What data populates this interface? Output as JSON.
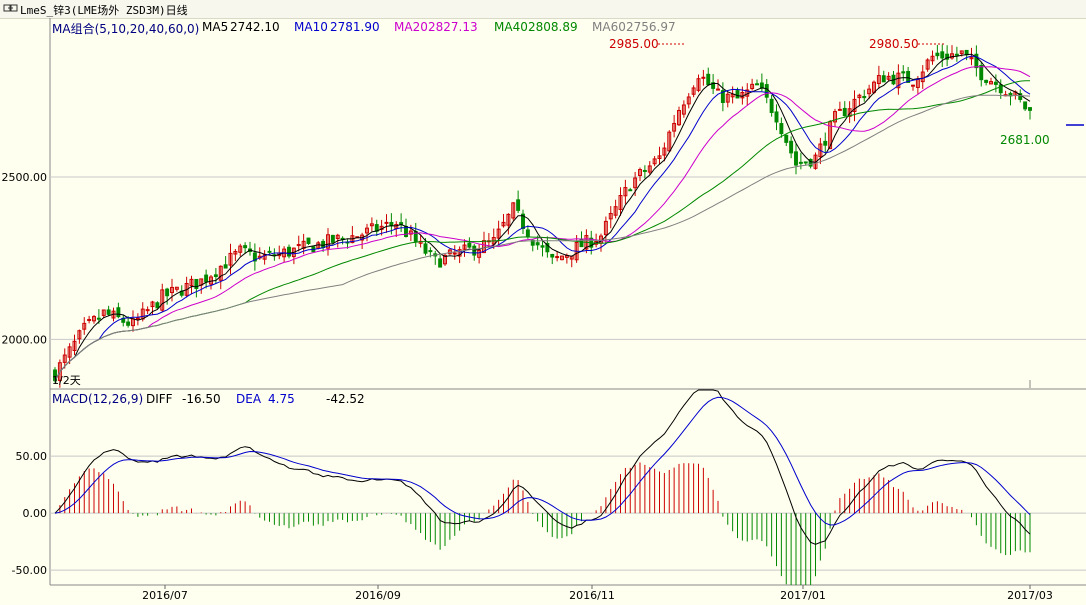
{
  "window": {
    "title": "LmeS_锌3(LME场外 ZSD3M)日线"
  },
  "colors": {
    "background": "#FFFFF0",
    "up_candle": "#CC0000",
    "down_candle": "#008800",
    "ma5": "#000000",
    "ma10": "#0000CC",
    "ma20": "#CC00CC",
    "ma40": "#008800",
    "ma60": "#808080",
    "diff": "#000000",
    "dea": "#0000CC",
    "annotation": "#CC0000",
    "grid": "#C8C8C8"
  },
  "chart_data": [
    {
      "type": "candlestick",
      "panel": "price",
      "period": "日线",
      "y_ticks": [
        "2500.00",
        "2000.00"
      ],
      "ylim": [
        1850,
        2990
      ],
      "x_ticks": [
        "2016/07",
        "2016/09",
        "2016/11",
        "2017/01",
        "2017/03"
      ],
      "legend": {
        "label": "MA组合(5,10,20,40,60,0)",
        "items": [
          {
            "label": "MA5",
            "value": "2742.10"
          },
          {
            "label": "MA10",
            "value": "2781.90"
          },
          {
            "label": "MA20",
            "value": "2827.13"
          },
          {
            "label": "MA40",
            "value": "2808.89"
          },
          {
            "label": "MA60",
            "value": "2756.97"
          }
        ]
      },
      "annotations": {
        "high1": "2985.00",
        "high2": "2980.50",
        "low_last": "2681.00",
        "cursor": "1/2天"
      },
      "close_anchors": [
        [
          0,
          1895
        ],
        [
          6,
          2030
        ],
        [
          10,
          2080
        ],
        [
          16,
          2045
        ],
        [
          22,
          2130
        ],
        [
          30,
          2180
        ],
        [
          38,
          2270
        ],
        [
          42,
          2250
        ],
        [
          48,
          2270
        ],
        [
          56,
          2300
        ],
        [
          62,
          2320
        ],
        [
          70,
          2360
        ],
        [
          74,
          2300
        ],
        [
          78,
          2240
        ],
        [
          84,
          2270
        ],
        [
          90,
          2300
        ],
        [
          94,
          2400
        ],
        [
          98,
          2310
        ],
        [
          102,
          2240
        ],
        [
          108,
          2290
        ],
        [
          112,
          2320
        ],
        [
          118,
          2480
        ],
        [
          124,
          2560
        ],
        [
          128,
          2710
        ],
        [
          132,
          2820
        ],
        [
          136,
          2750
        ],
        [
          140,
          2740
        ],
        [
          144,
          2780
        ],
        [
          148,
          2690
        ],
        [
          152,
          2540
        ],
        [
          156,
          2560
        ],
        [
          160,
          2680
        ],
        [
          166,
          2760
        ],
        [
          170,
          2810
        ],
        [
          176,
          2800
        ],
        [
          180,
          2870
        ],
        [
          186,
          2880
        ],
        [
          190,
          2820
        ],
        [
          196,
          2760
        ],
        [
          200,
          2700
        ]
      ],
      "ma_periods": [
        5,
        10,
        20,
        40,
        60
      ]
    },
    {
      "type": "macd",
      "panel": "indicator",
      "legend": {
        "label": "MACD(12,26,9)",
        "diff_label": "DIFF",
        "diff_value": "-16.50",
        "dea_label": "DEA",
        "dea_value": "4.75",
        "macd_value": "-42.52"
      },
      "y_ticks": [
        "50.00",
        "0.00",
        "-50.00"
      ],
      "ylim": [
        -63,
        108
      ],
      "series": [
        "DIFF",
        "DEA",
        "MACD"
      ]
    }
  ]
}
